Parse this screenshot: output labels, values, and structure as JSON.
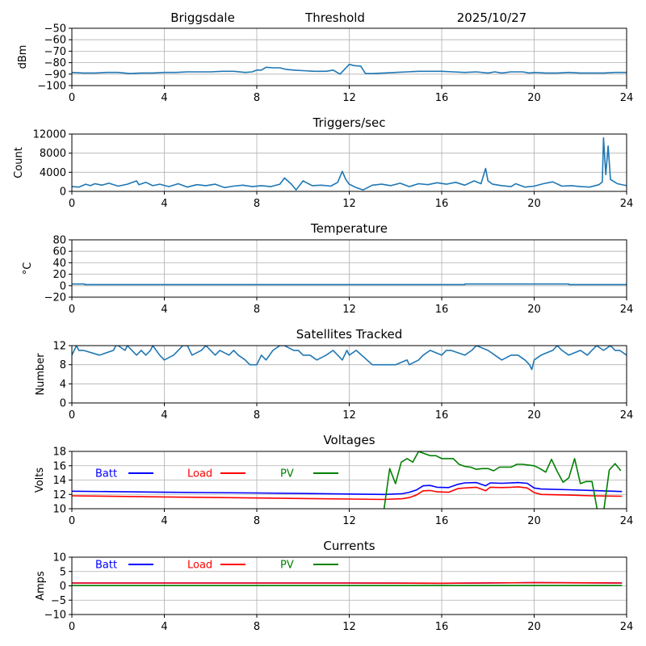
{
  "header": {
    "station": "Briggsdale",
    "metric": "Threshold",
    "date": "2025/10/27"
  },
  "chart_data": [
    {
      "id": "threshold",
      "type": "line",
      "title": "",
      "xlabel": "",
      "ylabel": "dBm",
      "xlim": [
        0,
        24
      ],
      "ylim": [
        -100,
        -50
      ],
      "xticks": [
        0,
        4,
        8,
        12,
        16,
        20,
        24
      ],
      "yticks": [
        -100,
        -90,
        -80,
        -70,
        -60,
        -50
      ],
      "ytick_labels": [
        "−100",
        "−90",
        "−80",
        "−70",
        "−60",
        "−50"
      ],
      "grid": true,
      "series": [
        {
          "name": "Threshold",
          "color": "#1f77b4",
          "x": [
            0,
            0.5,
            1,
            1.5,
            2,
            2.5,
            3,
            3.5,
            4,
            4.5,
            5,
            5.5,
            6,
            6.5,
            7,
            7.5,
            7.8,
            8,
            8.2,
            8.4,
            8.7,
            9,
            9.3,
            9.6,
            10,
            10.5,
            11,
            11.3,
            11.6,
            12,
            12.2,
            12.5,
            12.7,
            13,
            13.5,
            14,
            14.5,
            15,
            15.5,
            16,
            16.5,
            17,
            17.5,
            18,
            18.3,
            18.6,
            19,
            19.5,
            19.8,
            20,
            20.5,
            21,
            21.5,
            22,
            22.5,
            23,
            23.5,
            24
          ],
          "y": [
            -88.5,
            -89,
            -89,
            -88.5,
            -88.5,
            -89.5,
            -89,
            -89,
            -88.5,
            -88.5,
            -88,
            -88,
            -88,
            -87.5,
            -87.5,
            -88.5,
            -88,
            -86.5,
            -86.5,
            -84,
            -84.5,
            -84.5,
            -86,
            -86.5,
            -87,
            -87.5,
            -87.5,
            -86.5,
            -90,
            -81.5,
            -82.5,
            -83,
            -89.5,
            -89.5,
            -89,
            -88.5,
            -88,
            -87.5,
            -87.5,
            -87.5,
            -88,
            -88.5,
            -88,
            -89,
            -88,
            -89,
            -88,
            -88,
            -89,
            -88.5,
            -89,
            -89,
            -88.5,
            -89,
            -89,
            -89,
            -88.5,
            -88.5
          ]
        }
      ]
    },
    {
      "id": "triggers",
      "type": "line",
      "title": "Triggers/sec",
      "xlabel": "",
      "ylabel": "Count",
      "xlim": [
        0,
        24
      ],
      "ylim": [
        0,
        12000
      ],
      "xticks": [
        0,
        4,
        8,
        12,
        16,
        20,
        24
      ],
      "yticks": [
        0,
        4000,
        8000,
        12000
      ],
      "ytick_labels": [
        "0",
        "4000",
        "8000",
        "12000"
      ],
      "grid": true,
      "series": [
        {
          "name": "Triggers",
          "color": "#1f77b4",
          "x": [
            0,
            0.3,
            0.6,
            0.8,
            1.0,
            1.3,
            1.6,
            2.0,
            2.4,
            2.8,
            2.9,
            3.2,
            3.5,
            3.8,
            4.2,
            4.6,
            5.0,
            5.4,
            5.8,
            6.2,
            6.6,
            7.0,
            7.4,
            7.8,
            8.2,
            8.6,
            9.0,
            9.2,
            9.5,
            9.7,
            10.0,
            10.4,
            10.8,
            11.2,
            11.5,
            11.7,
            11.85,
            12.0,
            12.3,
            12.6,
            13.0,
            13.4,
            13.8,
            14.2,
            14.6,
            15.0,
            15.4,
            15.8,
            16.2,
            16.6,
            17.0,
            17.4,
            17.7,
            17.9,
            18.0,
            18.2,
            18.6,
            19.0,
            19.2,
            19.6,
            20.0,
            20.4,
            20.8,
            21.2,
            21.6,
            22.0,
            22.4,
            22.8,
            22.95,
            23.0,
            23.1,
            23.2,
            23.3,
            23.6,
            24.0
          ],
          "y": [
            1000,
            900,
            1500,
            1200,
            1600,
            1300,
            1700,
            1100,
            1500,
            2200,
            1400,
            1900,
            1200,
            1500,
            1000,
            1600,
            900,
            1400,
            1200,
            1500,
            800,
            1100,
            1300,
            1000,
            1200,
            1000,
            1500,
            2800,
            1500,
            300,
            2200,
            1200,
            1300,
            1100,
            1900,
            4200,
            2500,
            1500,
            800,
            300,
            1300,
            1500,
            1200,
            1700,
            1000,
            1600,
            1400,
            1800,
            1500,
            1900,
            1300,
            2200,
            1600,
            4800,
            2200,
            1500,
            1200,
            1000,
            1600,
            900,
            1100,
            1600,
            2000,
            1100,
            1200,
            1000,
            900,
            1400,
            2000,
            11200,
            3500,
            9500,
            2500,
            1600,
            1200
          ]
        }
      ]
    },
    {
      "id": "temperature",
      "type": "line",
      "title": "Temperature",
      "xlabel": "",
      "ylabel": "°C",
      "xlim": [
        0,
        24
      ],
      "ylim": [
        -20,
        80
      ],
      "xticks": [
        0,
        4,
        8,
        12,
        16,
        20,
        24
      ],
      "yticks": [
        -20,
        0,
        20,
        40,
        60,
        80
      ],
      "ytick_labels": [
        "−20",
        "0",
        "20",
        "40",
        "60",
        "80"
      ],
      "grid": true,
      "series": [
        {
          "name": "Temperature",
          "color": "#1f77b4",
          "x": [
            0,
            0.55,
            0.56,
            17.0,
            17.01,
            21.5,
            21.51,
            24
          ],
          "y": [
            3,
            3,
            2,
            2,
            3,
            3,
            2,
            2
          ]
        }
      ]
    },
    {
      "id": "satellites",
      "type": "line",
      "title": "Satellites Tracked",
      "xlabel": "",
      "ylabel": "Number",
      "xlim": [
        0,
        24
      ],
      "ylim": [
        0,
        12
      ],
      "xticks": [
        0,
        4,
        8,
        12,
        16,
        20,
        24
      ],
      "yticks": [
        0,
        4,
        8,
        12
      ],
      "ytick_labels": [
        "0",
        "4",
        "8",
        "12"
      ],
      "grid": true,
      "series": [
        {
          "name": "Satellites",
          "color": "#1f77b4",
          "x": [
            0,
            0.1,
            0.2,
            0.3,
            0.5,
            1.2,
            1.8,
            1.9,
            2.0,
            2.3,
            2.4,
            2.6,
            2.8,
            3.0,
            3.2,
            3.4,
            3.5,
            3.8,
            4.0,
            4.4,
            4.6,
            4.8,
            5.0,
            5.2,
            5.6,
            5.8,
            6.0,
            6.2,
            6.4,
            6.8,
            7.0,
            7.2,
            7.5,
            7.7,
            8.0,
            8.2,
            8.4,
            8.7,
            9.0,
            9.2,
            9.6,
            9.8,
            10.0,
            10.3,
            10.6,
            11.0,
            11.3,
            11.5,
            11.7,
            11.9,
            12.0,
            12.3,
            13.0,
            13.5,
            14.0,
            14.5,
            14.6,
            15.0,
            15.2,
            15.5,
            16.0,
            16.2,
            16.4,
            17.0,
            17.3,
            17.5,
            18.0,
            18.3,
            18.6,
            19.0,
            19.3,
            19.6,
            19.8,
            19.9,
            20.0,
            20.3,
            20.8,
            21.0,
            21.2,
            21.5,
            22.0,
            22.3,
            22.7,
            23.0,
            23.3,
            23.5,
            23.7,
            24.0
          ],
          "y": [
            10,
            11,
            12,
            11,
            11,
            10,
            11,
            12,
            12,
            11,
            12,
            11,
            10,
            11,
            10,
            11,
            12,
            10,
            9,
            10,
            11,
            12,
            12,
            10,
            11,
            12,
            11,
            10,
            11,
            10,
            11,
            10,
            9,
            8,
            8,
            10,
            9,
            11,
            12,
            12,
            11,
            11,
            10,
            10,
            9,
            10,
            11,
            10,
            9,
            11,
            10,
            11,
            8,
            8,
            8,
            9,
            8,
            9,
            10,
            11,
            10,
            11,
            11,
            10,
            11,
            12,
            11,
            10,
            9,
            10,
            10,
            9,
            8,
            7,
            9,
            10,
            11,
            12,
            11,
            10,
            11,
            10,
            12,
            11,
            12,
            11,
            11,
            10
          ]
        }
      ]
    },
    {
      "id": "voltages",
      "type": "line",
      "title": "Voltages",
      "xlabel": "",
      "ylabel": "Volts",
      "xlim": [
        0,
        24
      ],
      "ylim": [
        10,
        18
      ],
      "xticks": [
        0,
        4,
        8,
        12,
        16,
        20,
        24
      ],
      "yticks": [
        10,
        12,
        14,
        16,
        18
      ],
      "ytick_labels": [
        "10",
        "12",
        "14",
        "16",
        "18"
      ],
      "grid": true,
      "legend": {
        "placement": "top-left",
        "layout": "horizontal"
      },
      "series": [
        {
          "name": "Batt",
          "color": "#0000ff",
          "x": [
            0,
            4,
            8,
            12,
            13.5,
            14.3,
            14.6,
            14.9,
            15.2,
            15.5,
            15.8,
            16.3,
            16.7,
            17.0,
            17.5,
            17.9,
            18.1,
            18.6,
            19.0,
            19.3,
            19.7,
            20.0,
            20.3,
            21.5,
            22.5,
            23.8
          ],
          "y": [
            12.45,
            12.3,
            12.2,
            12.05,
            12.0,
            12.1,
            12.3,
            12.6,
            13.2,
            13.25,
            13.0,
            12.95,
            13.4,
            13.6,
            13.65,
            13.2,
            13.6,
            13.55,
            13.6,
            13.65,
            13.55,
            12.9,
            12.75,
            12.65,
            12.55,
            12.4
          ]
        },
        {
          "name": "Load",
          "color": "#ff0000",
          "x": [
            0,
            4,
            8,
            12,
            13.5,
            14.3,
            14.6,
            14.9,
            15.2,
            15.5,
            15.8,
            16.3,
            16.7,
            17.0,
            17.5,
            17.9,
            18.1,
            18.6,
            19.0,
            19.3,
            19.7,
            20.0,
            20.3,
            21.5,
            22.5,
            23.8
          ],
          "y": [
            11.8,
            11.65,
            11.5,
            11.35,
            11.3,
            11.4,
            11.55,
            11.9,
            12.5,
            12.55,
            12.35,
            12.3,
            12.8,
            12.9,
            13.0,
            12.5,
            13.0,
            12.95,
            13.0,
            13.05,
            12.9,
            12.25,
            12.0,
            11.9,
            11.8,
            11.75
          ]
        },
        {
          "name": "PV",
          "color": "#008000",
          "x": [
            13.5,
            13.75,
            14.0,
            14.25,
            14.5,
            14.75,
            15.0,
            15.25,
            15.5,
            15.75,
            16.0,
            16.25,
            16.5,
            16.75,
            17.0,
            17.25,
            17.5,
            17.75,
            18.0,
            18.25,
            18.5,
            18.75,
            19.0,
            19.25,
            19.5,
            19.75,
            20.0,
            20.25,
            20.5,
            20.75,
            21.0,
            21.25,
            21.5,
            21.75,
            22.0,
            22.25,
            22.5,
            22.75,
            23.0,
            23.25,
            23.5,
            23.75
          ],
          "y": [
            9.8,
            15.6,
            13.5,
            16.5,
            17.0,
            16.5,
            18.0,
            17.7,
            17.4,
            17.4,
            17.0,
            17.0,
            17.0,
            16.2,
            15.9,
            15.8,
            15.5,
            15.6,
            15.6,
            15.3,
            15.8,
            15.8,
            15.8,
            16.2,
            16.2,
            16.1,
            16.0,
            15.6,
            15.1,
            16.9,
            15.2,
            13.7,
            14.3,
            17.0,
            13.5,
            13.8,
            13.8,
            9.5,
            9.5,
            15.4,
            16.3,
            15.3
          ]
        }
      ]
    },
    {
      "id": "currents",
      "type": "line",
      "title": "Currents",
      "xlabel": "",
      "ylabel": "Amps",
      "xlim": [
        0,
        24
      ],
      "ylim": [
        -10,
        10
      ],
      "xticks": [
        0,
        4,
        8,
        12,
        16,
        20,
        24
      ],
      "yticks": [
        -10,
        -5,
        0,
        5,
        10
      ],
      "ytick_labels": [
        "−10",
        "−5",
        "0",
        "5",
        "10"
      ],
      "grid": true,
      "legend": {
        "placement": "top-left",
        "layout": "horizontal"
      },
      "series": [
        {
          "name": "Batt",
          "color": "#0000ff",
          "x": [
            0,
            6,
            12,
            16,
            20,
            23.8
          ],
          "y": [
            1.0,
            1.0,
            1.0,
            0.9,
            1.1,
            1.0
          ]
        },
        {
          "name": "Load",
          "color": "#ff0000",
          "x": [
            0,
            6,
            12,
            16,
            20,
            23.8
          ],
          "y": [
            1.0,
            1.0,
            1.0,
            0.9,
            1.1,
            1.0
          ]
        },
        {
          "name": "PV",
          "color": "#008000",
          "x": [
            0,
            23.8
          ],
          "y": [
            0.1,
            0.1
          ]
        }
      ]
    }
  ]
}
